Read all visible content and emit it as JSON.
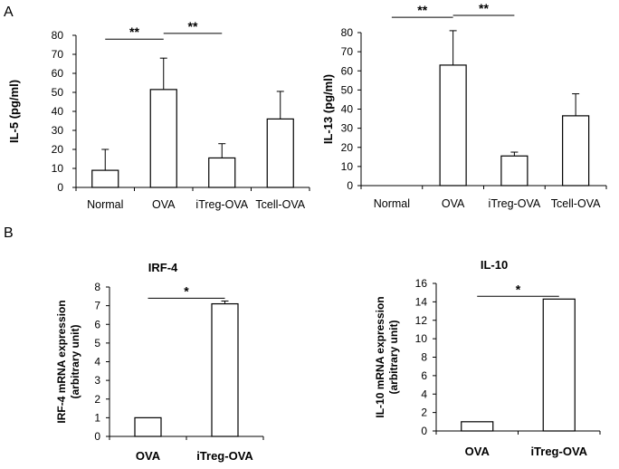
{
  "panels": {
    "a": "A",
    "b": "B"
  },
  "chart_data": [
    {
      "type": "bar",
      "title": "",
      "ylabel": "IL-5 (pg/ml)",
      "categories": [
        "Normal",
        "OVA",
        "iTreg-OVA",
        "Tcell-OVA"
      ],
      "values": [
        9,
        51.5,
        15.5,
        36
      ],
      "errors": [
        11,
        16.5,
        7.5,
        14.5
      ],
      "ylim": [
        0,
        80
      ],
      "yticks": [
        "0",
        "10",
        "20",
        "30",
        "40",
        "50",
        "60",
        "70",
        "80"
      ],
      "significance": [
        {
          "from": 0,
          "to": 1,
          "label": "**",
          "level": 78
        },
        {
          "from": 1,
          "to": 2,
          "label": "**",
          "level": 81
        }
      ]
    },
    {
      "type": "bar",
      "title": "",
      "ylabel": "IL-13 (pg/ml)",
      "categories": [
        "Normal",
        "OVA",
        "iTreg-OVA",
        "Tcell-OVA"
      ],
      "values": [
        0,
        63,
        15.5,
        36.5
      ],
      "errors": [
        0,
        18,
        2,
        11.5
      ],
      "ylim": [
        0,
        80
      ],
      "yticks": [
        "0",
        "10",
        "20",
        "30",
        "40",
        "50",
        "60",
        "70",
        "80"
      ],
      "significance": [
        {
          "from": 0,
          "to": 1,
          "label": "**",
          "level": 88
        },
        {
          "from": 1,
          "to": 2,
          "label": "**",
          "level": 89
        }
      ]
    },
    {
      "type": "bar",
      "title": "IRF-4",
      "ylabel": "IRF-4 mRNA expression (arbitrary unit)",
      "ylabel_lines": [
        "IRF-4 mRNA expression",
        "(arbitrary unit)"
      ],
      "categories": [
        "OVA",
        "iTreg-OVA"
      ],
      "values": [
        1,
        7.1
      ],
      "errors": [
        0,
        0.15
      ],
      "ylim": [
        0,
        8
      ],
      "yticks": [
        "0",
        "1",
        "2",
        "3",
        "4",
        "5",
        "6",
        "7",
        "8"
      ],
      "significance": [
        {
          "from": 0,
          "to": 1,
          "label": "*",
          "level": 7.4
        }
      ]
    },
    {
      "type": "bar",
      "title": "IL-10",
      "ylabel": "IL-10 mRNA expression (arbitrary unit)",
      "ylabel_lines": [
        "IL-10 mRNA expression",
        "(arbitrary unit)"
      ],
      "categories": [
        "OVA",
        "iTreg-OVA"
      ],
      "values": [
        1,
        14.3
      ],
      "errors": [
        0,
        0
      ],
      "ylim": [
        0,
        16
      ],
      "yticks": [
        "0",
        "2",
        "4",
        "6",
        "8",
        "10",
        "12",
        "14",
        "16"
      ],
      "significance": [
        {
          "from": 0,
          "to": 1,
          "label": "*",
          "level": 14.6
        }
      ]
    }
  ]
}
